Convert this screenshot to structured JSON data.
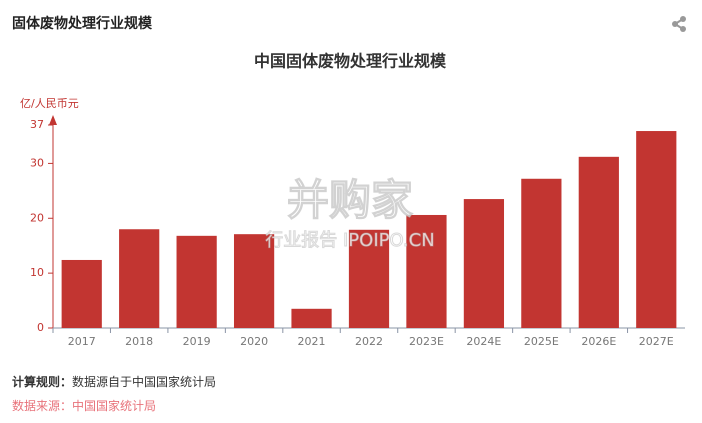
{
  "header": {
    "title": "固体废物处理行业规模"
  },
  "chart_data": {
    "type": "bar",
    "title": "中国固体废物处理行业规模",
    "y_axis_label": "亿/人民币元",
    "categories": [
      "2017",
      "2018",
      "2019",
      "2020",
      "2021",
      "2022",
      "2023E",
      "2024E",
      "2025E",
      "2026E",
      "2027E"
    ],
    "values": [
      12.4,
      18.0,
      16.8,
      17.1,
      3.5,
      17.9,
      20.6,
      23.5,
      27.2,
      31.2,
      35.9
    ],
    "color": "#c23531",
    "ylim": [
      0,
      37
    ],
    "yticks": [
      0,
      10,
      20,
      30,
      37
    ],
    "grid": false
  },
  "watermark": [
    "并购家",
    "行业报告 IPOIPO.CN"
  ],
  "footer": {
    "rule_label": "计算规则：",
    "rule_text": "数据源自于中国国家统计局",
    "source_label": "数据来源：",
    "source_text": "中国国家统计局"
  }
}
